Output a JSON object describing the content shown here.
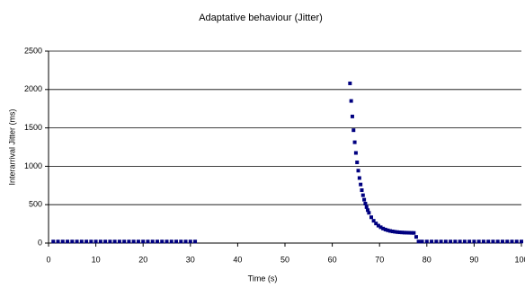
{
  "chart_data": {
    "type": "scatter",
    "title": "Adaptative behaviour (Jitter)",
    "x_label": "Time (s)",
    "y_label": "Interarrival Jitter (ms)",
    "xlim": [
      0,
      100
    ],
    "xticks": [
      0,
      10,
      20,
      30,
      40,
      50,
      60,
      70,
      80,
      90,
      100
    ],
    "ylim": [
      0,
      2500
    ],
    "yticks": [
      0,
      500,
      1000,
      1500,
      2000,
      2500
    ],
    "grid": true,
    "series": [
      {
        "color": "#000080",
        "x": [
          1,
          2,
          3,
          4,
          5,
          6,
          7,
          8,
          9,
          10,
          11,
          12,
          13,
          14,
          15,
          16,
          17,
          18,
          19,
          20,
          21,
          22,
          23,
          24,
          25,
          26,
          27,
          28,
          29,
          30,
          31,
          63.75,
          64,
          64.25,
          64.5,
          64.75,
          65,
          65.25,
          65.5,
          65.75,
          66,
          66.25,
          66.5,
          66.75,
          67,
          67.25,
          67.5,
          67.75,
          68.25,
          68.75,
          69.25,
          69.75,
          70.25,
          70.75,
          71.25,
          71.75,
          72.25,
          72.75,
          73.25,
          73.75,
          74.25,
          74.75,
          75.25,
          75.75,
          76.25,
          76.75,
          77.25,
          77.75,
          78.25,
          79,
          80,
          81,
          82,
          83,
          84,
          85,
          86,
          87,
          88,
          89,
          90,
          91,
          92,
          93,
          94,
          95,
          96,
          97,
          98,
          99,
          100
        ],
        "values": [
          20,
          20,
          20,
          20,
          20,
          20,
          20,
          20,
          20,
          20,
          20,
          20,
          20,
          20,
          20,
          20,
          20,
          20,
          20,
          20,
          20,
          20,
          20,
          20,
          20,
          20,
          20,
          20,
          20,
          20,
          20,
          2080,
          1851,
          1649,
          1470,
          1313,
          1174,
          1051,
          943,
          847,
          763,
          689,
          623,
          565,
          514,
          469,
          429,
          394,
          336,
          290,
          255,
          227,
          206,
          189,
          176,
          166,
          158,
          152,
          147,
          143,
          140,
          138,
          136,
          135,
          134,
          133,
          132,
          80,
          20,
          20,
          20,
          20,
          20,
          20,
          20,
          20,
          20,
          20,
          20,
          20,
          20,
          20,
          20,
          20,
          20,
          20,
          20,
          20,
          20,
          20,
          20
        ]
      }
    ]
  }
}
